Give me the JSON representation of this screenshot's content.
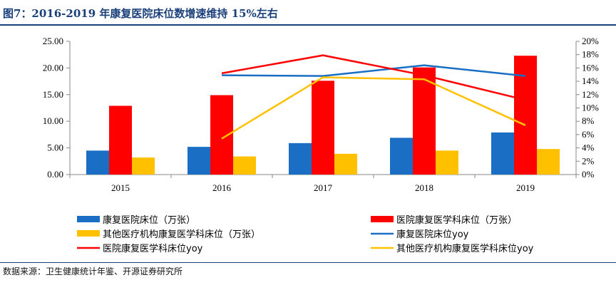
{
  "title": "图7：2016-2019 年康复医院床位数增速维持 15%左右",
  "source": "数据来源：卫生健康统计年鉴、开源证券研究所",
  "chart_data": {
    "type": "bar",
    "categories": [
      "2015",
      "2016",
      "2017",
      "2018",
      "2019"
    ],
    "ylim_left": [
      0,
      25
    ],
    "yticks_left": [
      "0.00",
      "5.00",
      "10.00",
      "15.00",
      "20.00",
      "25.00"
    ],
    "ylim_right": [
      0,
      20
    ],
    "yticks_right": [
      "0%",
      "2%",
      "4%",
      "6%",
      "8%",
      "10%",
      "12%",
      "14%",
      "16%",
      "18%",
      "20%"
    ],
    "grid": false,
    "legend_position": "bottom",
    "bar_series": [
      {
        "name": "康复医院床位（万张）",
        "color": "#1a6fc4",
        "values": [
          4.5,
          5.2,
          5.9,
          6.9,
          7.9
        ]
      },
      {
        "name": "医院康复医学科床位（万张）",
        "color": "#ff0000",
        "values": [
          12.9,
          14.9,
          17.6,
          20.1,
          22.3
        ]
      },
      {
        "name": "其他医疗机构康复医学科床位（万张）",
        "color": "#ffc000",
        "values": [
          3.2,
          3.4,
          3.9,
          4.5,
          4.8
        ]
      }
    ],
    "line_series": [
      {
        "name": "康复医院床位yoy",
        "color": "#1a6fc4",
        "values": [
          null,
          14.9,
          14.8,
          16.4,
          14.8
        ]
      },
      {
        "name": "医院康复医学科床位yoy",
        "color": "#ff0000",
        "values": [
          null,
          15.2,
          17.9,
          14.9,
          11.2
        ]
      },
      {
        "name": "其他医疗机构康复医学科床位yoy",
        "color": "#ffc000",
        "values": [
          null,
          5.4,
          14.6,
          14.3,
          7.4
        ]
      }
    ]
  }
}
